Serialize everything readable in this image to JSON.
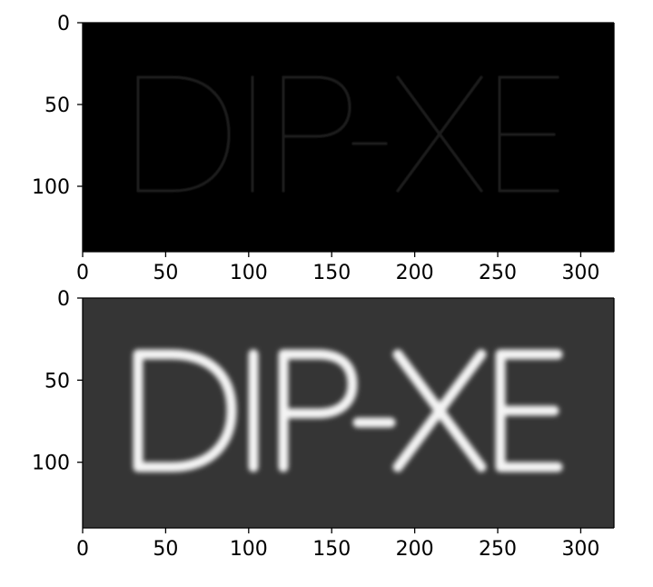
{
  "chart_data": [
    {
      "type": "image",
      "image_text": "DIP-XE",
      "image_size": {
        "width": 320,
        "height": 140
      },
      "xlim": [
        0,
        320
      ],
      "ylim": [
        140,
        0
      ],
      "xticks": [
        0,
        50,
        100,
        150,
        200,
        250,
        300
      ],
      "yticks": [
        0,
        50,
        100
      ],
      "xtick_labels": [
        "0",
        "50",
        "100",
        "150",
        "200",
        "250",
        "300"
      ],
      "ytick_labels": [
        "0",
        "50",
        "100"
      ],
      "background_color": "#000000",
      "text_color": "#1c1c1c",
      "rendering": "thin outline strokes"
    },
    {
      "type": "image",
      "image_text": "DIP-XE",
      "image_size": {
        "width": 320,
        "height": 140
      },
      "xlim": [
        0,
        320
      ],
      "ylim": [
        140,
        0
      ],
      "xticks": [
        0,
        50,
        100,
        150,
        200,
        250,
        300
      ],
      "yticks": [
        0,
        50,
        100
      ],
      "xtick_labels": [
        "0",
        "50",
        "100",
        "150",
        "200",
        "250",
        "300"
      ],
      "ytick_labels": [
        "0",
        "50",
        "100"
      ],
      "background_color": "#353535",
      "text_color": "#f4f4f4",
      "rendering": "bold blurred strokes"
    }
  ]
}
